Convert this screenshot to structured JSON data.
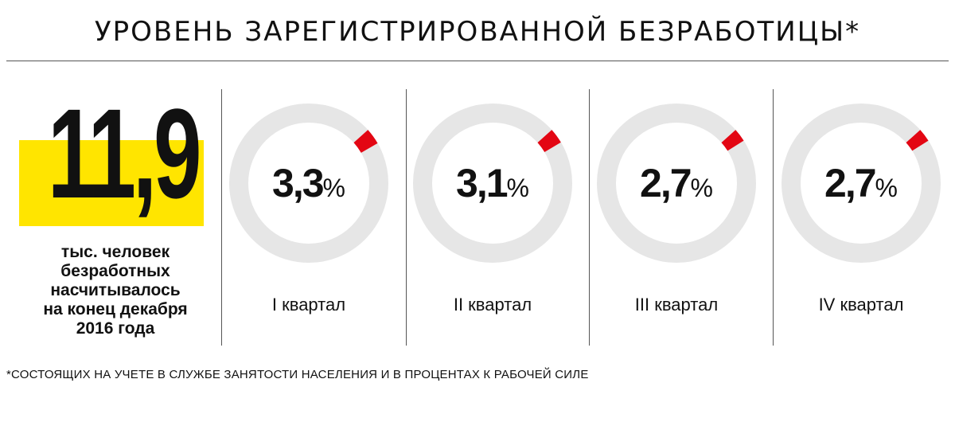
{
  "title": "УРОВЕНЬ ЗАРЕГИСТРИРОВАННОЙ БЕЗРАБОТИЦЫ*",
  "headline": {
    "value": "11,9",
    "caption": [
      "тыс. человек",
      "безработных",
      "насчитывалось",
      "на конец декабря",
      "2016 года"
    ],
    "highlight_color": "#ffe500"
  },
  "percent_sign": "%",
  "footnote": "*СОСТОЯЩИХ НА УЧЕТЕ В СЛУЖБЕ ЗАНЯТОСТИ НАСЕЛЕНИЯ И В ПРОЦЕНТАХ К РАБОЧЕЙ СИЛЕ",
  "colors": {
    "ring_track": "#e6e6e6",
    "ring_value": "#e30613",
    "text": "#111111"
  },
  "chart_data": {
    "type": "pie",
    "categories": [
      "I квартал",
      "II квартал",
      "III квартал",
      "IV квартал"
    ],
    "values": [
      3.3,
      3.1,
      2.7,
      2.7
    ],
    "value_labels": [
      "3,3",
      "3,1",
      "2,7",
      "2,7"
    ],
    "unit": "%",
    "max": 100
  }
}
